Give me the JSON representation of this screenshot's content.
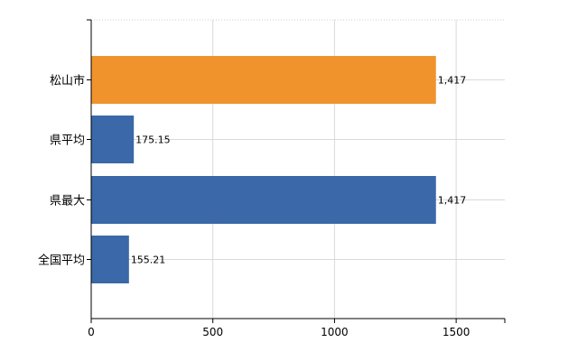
{
  "chart_data": {
    "type": "bar",
    "orientation": "horizontal",
    "categories": [
      "松山市",
      "県平均",
      "県最大",
      "全国平均"
    ],
    "values": [
      1417,
      175.15,
      1417,
      155.21
    ],
    "value_labels": [
      "1,417",
      "175.15",
      "1,417",
      "155.21"
    ],
    "bar_colors": [
      "#f0932c",
      "#3a68a8",
      "#3a68a8",
      "#3a68a8"
    ],
    "xlim": [
      0,
      1700
    ],
    "x_ticks": [
      0,
      500,
      1000,
      1500
    ],
    "grid": true,
    "title": "",
    "xlabel": "",
    "ylabel": ""
  }
}
